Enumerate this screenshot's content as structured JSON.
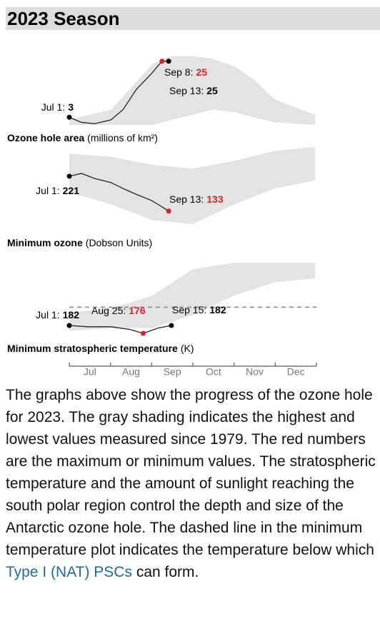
{
  "header": {
    "title": "2023 Season"
  },
  "months": [
    "Jul",
    "Aug",
    "Sep",
    "Oct",
    "Nov",
    "Dec"
  ],
  "chart_data": [
    {
      "type": "line",
      "title": "Ozone hole area",
      "units": "(millions of km²)",
      "ylim": [
        0,
        28
      ],
      "series": {
        "color": "#222222",
        "x": [
          "Jul 1",
          "Jul 10",
          "Jul 20",
          "Aug 1",
          "Aug 10",
          "Aug 20",
          "Aug 31",
          "Sep 8",
          "Sep 13"
        ],
        "values": [
          3,
          1,
          0.5,
          2,
          6,
          14,
          20,
          25,
          25
        ]
      },
      "band": {
        "color": "#e3e3e3",
        "x": [
          "Jul 1",
          "Aug 1",
          "Aug 15",
          "Sep 1",
          "Sep 15",
          "Oct 1",
          "Oct 15",
          "Nov 1",
          "Nov 15",
          "Dec 1",
          "Dec 31"
        ],
        "high": [
          2,
          6,
          14,
          24,
          27,
          27,
          26,
          23,
          18,
          10,
          4
        ],
        "low": [
          0,
          0,
          0,
          0,
          2,
          4,
          6,
          5,
          3,
          1,
          0
        ]
      },
      "annotations": [
        {
          "label": "Jul 1:",
          "value": 3,
          "color": "#000000"
        },
        {
          "label": "Sep 8:",
          "value": 25,
          "color": "#e02020"
        },
        {
          "label": "Sep 13:",
          "value": 25,
          "color": "#000000"
        }
      ]
    },
    {
      "type": "line",
      "title": "Minimum ozone",
      "units": "(Dobson Units)",
      "ylim": [
        100,
        300
      ],
      "series": {
        "color": "#222222",
        "x": [
          "Jul 1",
          "Jul 10",
          "Jul 20",
          "Aug 1",
          "Aug 10",
          "Aug 20",
          "Aug 31",
          "Sep 5",
          "Sep 13"
        ],
        "values": [
          221,
          228,
          215,
          205,
          190,
          175,
          160,
          150,
          133
        ]
      },
      "band": {
        "color": "#e3e3e3",
        "x": [
          "Jul 1",
          "Aug 1",
          "Sep 1",
          "Oct 1",
          "Nov 1",
          "Dec 1",
          "Dec 31"
        ],
        "high": [
          278,
          270,
          250,
          240,
          260,
          285,
          295
        ],
        "low": [
          180,
          150,
          110,
          100,
          150,
          190,
          210
        ]
      },
      "annotations": [
        {
          "label": "Jul 1:",
          "value": 221,
          "color": "#000000"
        },
        {
          "label": "Sep 13:",
          "value": 133,
          "color": "#e02020"
        }
      ]
    },
    {
      "type": "line",
      "title": "Minimum stratospheric temperature",
      "units": "(K)",
      "ylim": [
        170,
        230
      ],
      "threshold": 196,
      "series": {
        "color": "#222222",
        "x": [
          "Jul 1",
          "Jul 15",
          "Aug 1",
          "Aug 15",
          "Aug 25",
          "Sep 5",
          "Sep 15"
        ],
        "values": [
          182,
          181,
          181,
          179,
          176,
          180,
          182
        ]
      },
      "band": {
        "color": "#e3e3e3",
        "x": [
          "Jul 1",
          "Aug 1",
          "Sep 1",
          "Oct 1",
          "Nov 1",
          "Dec 1",
          "Dec 31"
        ],
        "high": [
          192,
          195,
          205,
          225,
          230,
          230,
          230
        ],
        "low": [
          178,
          180,
          180,
          190,
          205,
          215,
          218
        ]
      },
      "annotations": [
        {
          "label": "Jul 1:",
          "value": 182,
          "color": "#000000"
        },
        {
          "label": "Aug 25:",
          "value": 176,
          "color": "#e02020"
        },
        {
          "label": "Sep 15:",
          "value": 182,
          "color": "#000000"
        }
      ]
    }
  ],
  "description": {
    "before": "The graphs above show the progress of the ozone hole for 2023. The gray shading indicates the highest and lowest values measured since 1979. The red numbers are the maximum or minimum values. The stratospheric temperature and the amount of sunlight reaching the south polar region control the depth and size of the Antarctic ozone hole. The dashed line in the minimum temperature plot indicates the temperature below which ",
    "link": "Type I (NAT) PSCs",
    "after": " can form."
  }
}
